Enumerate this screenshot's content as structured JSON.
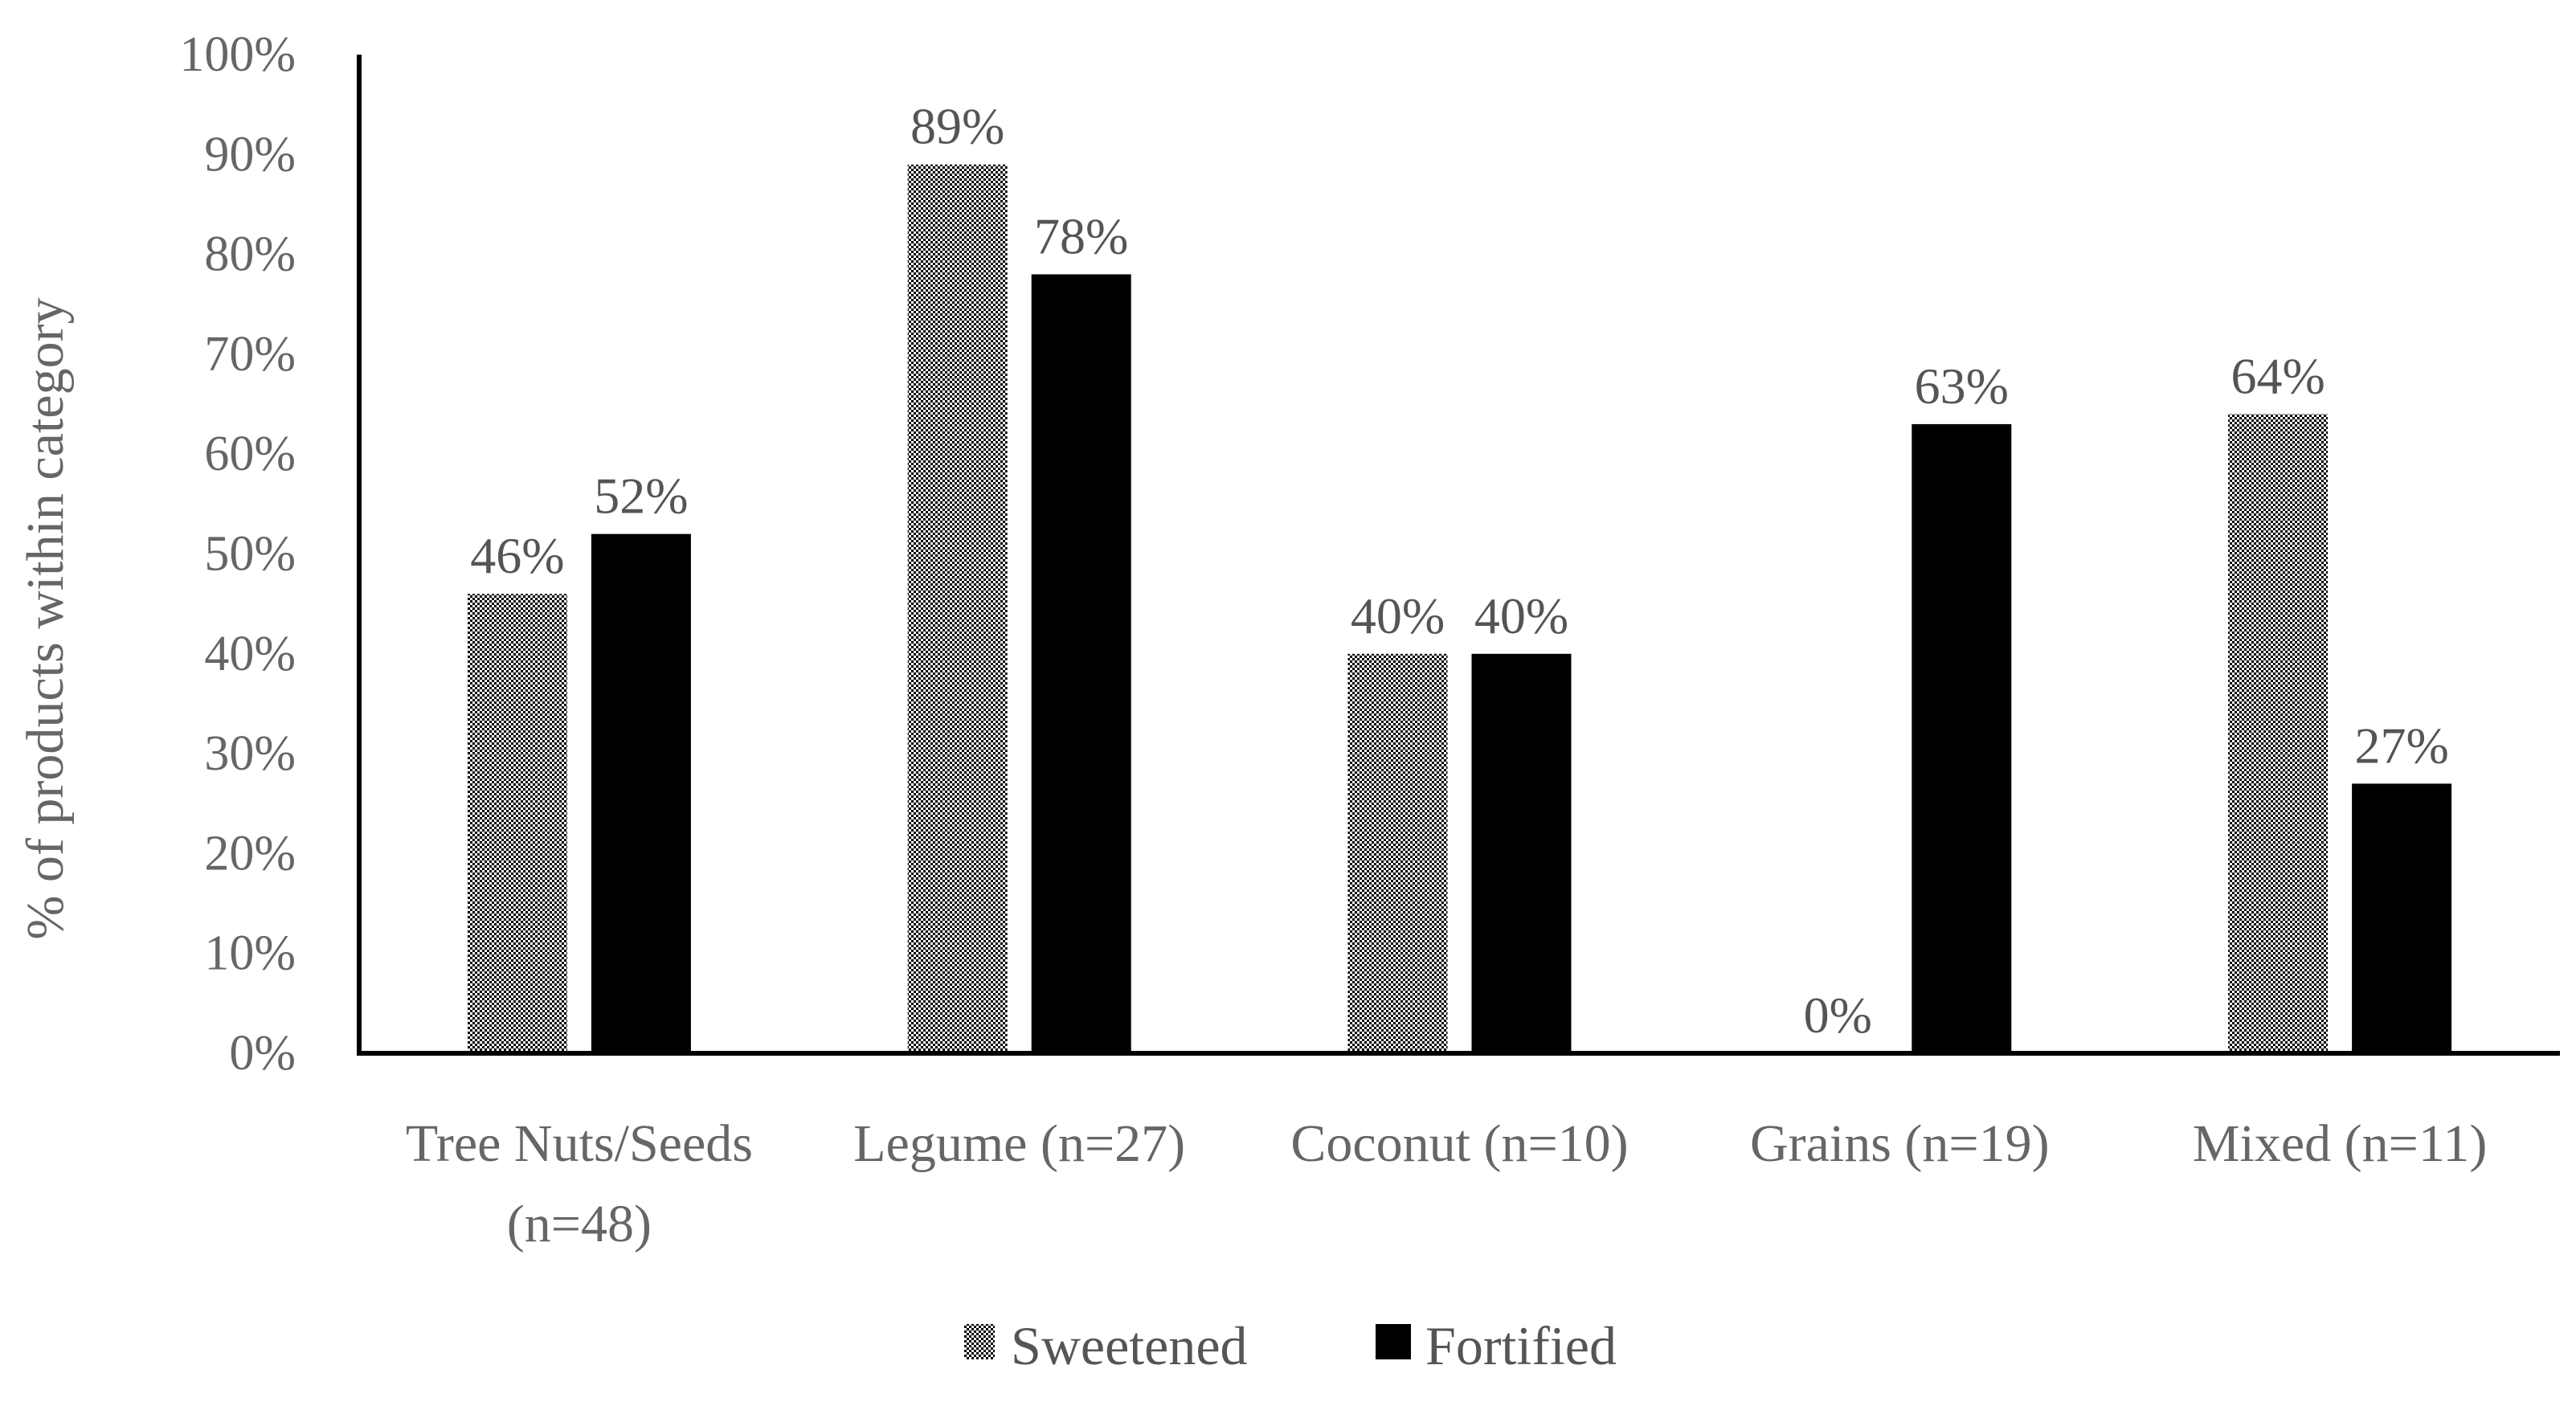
{
  "chart_data": {
    "type": "bar",
    "title": "",
    "xlabel": "",
    "ylabel": "% of products within category",
    "ylim": [
      0,
      100
    ],
    "y_tick_step": 10,
    "y_tick_suffix": "%",
    "categories": [
      [
        "Tree Nuts/Seeds",
        "(n=48)"
      ],
      [
        "Legume (n=27)"
      ],
      [
        "Coconut (n=10)"
      ],
      [
        "Grains (n=19)"
      ],
      [
        "Mixed (n=11)"
      ]
    ],
    "series": [
      {
        "name": "Sweetened",
        "pattern": "dotted",
        "values": [
          46,
          89,
          40,
          0,
          64
        ],
        "labels": [
          "46%",
          "89%",
          "40%",
          "0%",
          "64%"
        ]
      },
      {
        "name": "Fortified",
        "pattern": "solid",
        "values": [
          52,
          78,
          40,
          63,
          27
        ],
        "labels": [
          "52%",
          "78%",
          "40%",
          "63%",
          "27%"
        ]
      }
    ],
    "legend_position": "bottom-center",
    "grid": false,
    "colors": {
      "fortified": "#000000",
      "axis": "#000000",
      "text": "#666666"
    }
  }
}
